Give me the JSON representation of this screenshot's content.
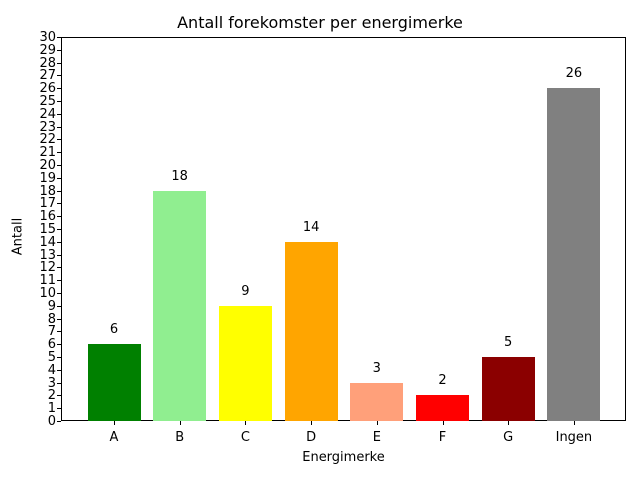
{
  "chart_data": {
    "type": "bar",
    "title": "Antall forekomster per energimerke",
    "xlabel": "Energimerke",
    "ylabel": "Antall",
    "categories": [
      "A",
      "B",
      "C",
      "D",
      "E",
      "F",
      "G",
      "Ingen"
    ],
    "values": [
      6,
      18,
      9,
      14,
      3,
      2,
      5,
      26
    ],
    "colors": [
      "#008000",
      "#90ee90",
      "#ffff00",
      "#ffa500",
      "#ffa07a",
      "#ff0000",
      "#8b0000",
      "#808080"
    ],
    "ylim": [
      0,
      30
    ],
    "yticks": [
      0,
      1,
      2,
      3,
      4,
      5,
      6,
      7,
      8,
      9,
      10,
      11,
      12,
      13,
      14,
      15,
      16,
      17,
      18,
      19,
      20,
      21,
      22,
      23,
      24,
      25,
      26,
      27,
      28,
      29,
      30
    ],
    "grid": false,
    "legend": null,
    "data_labels": true
  }
}
